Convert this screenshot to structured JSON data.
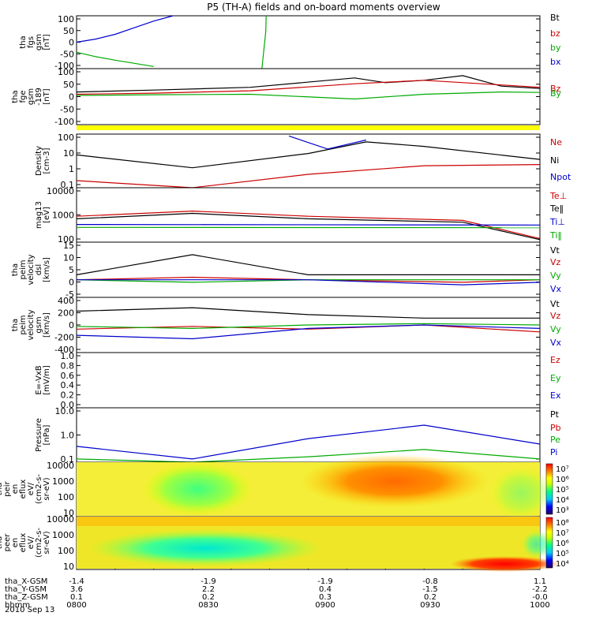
{
  "title": "P5 (TH-A) fields and on-board moments overview",
  "date_label": "2010 Sep 13",
  "orbit_rows": [
    {
      "label": "tha_X-GSM",
      "values": [
        "-1.4",
        "-1.9",
        "-1.9",
        "-0.8",
        "1.1"
      ]
    },
    {
      "label": "tha_Y-GSM",
      "values": [
        "3.6",
        "2.2",
        "0.4",
        "-1.5",
        "-2.2"
      ]
    },
    {
      "label": "tha_Z-GSM",
      "values": [
        "0.1",
        "0.2",
        "0.3",
        "0.2",
        "-0.0"
      ]
    },
    {
      "label": "hhmm",
      "values": [
        "0800",
        "0830",
        "0900",
        "0930",
        "1000"
      ]
    }
  ],
  "colors": {
    "black": "#000000",
    "red": "#cc0000",
    "green": "#00cc00",
    "blue": "#0000cc",
    "yellow": "#ffff00"
  },
  "chart_data": [
    {
      "type": "line",
      "ylabel": [
        "tha",
        "fgs",
        "gsm",
        "[nT]"
      ],
      "ylim": [
        -100,
        100
      ],
      "yticks": [
        "100",
        "50",
        "0",
        "-50",
        "-100"
      ],
      "legend": [
        {
          "name": "Bt",
          "color": "#000000"
        },
        {
          "name": "bz",
          "color": "#cc0000"
        },
        {
          "name": "by",
          "color": "#00aa00"
        },
        {
          "name": "bx",
          "color": "#0000cc"
        }
      ],
      "series": [
        {
          "name": "bx",
          "x": [
            "08:00",
            "08:05",
            "08:10",
            "08:15",
            "08:20",
            "08:25"
          ],
          "y": [
            0,
            12,
            30,
            55,
            80,
            100
          ]
        },
        {
          "name": "by",
          "x": [
            "08:00",
            "08:05",
            "08:10",
            "08:15",
            "08:20"
          ],
          "y": [
            -38,
            -55,
            -68,
            -80,
            -92
          ]
        },
        {
          "name": "bz_excursion",
          "x": [
            "08:48",
            "08:49",
            "08:49.1"
          ],
          "y": [
            -100,
            40,
            100
          ]
        }
      ]
    },
    {
      "type": "line",
      "ylabel": [
        "tha",
        "fge",
        "gsm",
        "-189",
        "[nT]"
      ],
      "ylim": [
        -120,
        120
      ],
      "yticks": [
        "100",
        "50",
        "0",
        "-50",
        "-100"
      ],
      "legend": [
        {
          "name": "Bz",
          "color": "#cc0000"
        },
        {
          "name": "By",
          "color": "#00aa00"
        }
      ],
      "series": [
        {
          "name": "Bt",
          "x": [
            "08:00",
            "08:20",
            "08:45",
            "09:12",
            "09:20",
            "09:30",
            "09:40",
            "09:50",
            "10:00"
          ],
          "y": [
            20,
            28,
            40,
            80,
            60,
            70,
            90,
            45,
            35
          ]
        },
        {
          "name": "bz",
          "x": [
            "08:00",
            "08:20",
            "08:45",
            "09:12",
            "09:30",
            "09:50",
            "10:00"
          ],
          "y": [
            10,
            15,
            25,
            55,
            70,
            50,
            40
          ]
        },
        {
          "name": "by",
          "x": [
            "08:00",
            "08:20",
            "08:45",
            "09:12",
            "09:30",
            "09:50",
            "10:00"
          ],
          "y": [
            5,
            8,
            10,
            -10,
            10,
            20,
            18
          ]
        }
      ]
    },
    {
      "type": "line",
      "ylabel": [
        "Density",
        "[cm-3]"
      ],
      "log": true,
      "ylim": [
        0.05,
        200
      ],
      "yticks": [
        "100",
        "10",
        "1",
        "0.1"
      ],
      "legend": [
        {
          "name": "Ne",
          "color": "#cc0000"
        },
        {
          "name": "Ni",
          "color": "#000000"
        },
        {
          "name": "Npot",
          "color": "#0000cc"
        }
      ],
      "series": [
        {
          "name": "Ni",
          "x": [
            "08:00",
            "08:30",
            "09:00",
            "09:15",
            "09:30",
            "10:00"
          ],
          "y": [
            8,
            1.1,
            10,
            60,
            30,
            4
          ]
        },
        {
          "name": "Ne",
          "x": [
            "08:00",
            "08:30",
            "09:00",
            "09:30",
            "10:00"
          ],
          "y": [
            0.15,
            0.05,
            0.4,
            1.5,
            1.8
          ]
        },
        {
          "name": "Npot",
          "x": [
            "08:55",
            "09:05",
            "09:15"
          ],
          "y": [
            150,
            20,
            80
          ]
        }
      ]
    },
    {
      "type": "line",
      "ylabel": [
        "mag13",
        "[eV]"
      ],
      "log": true,
      "ylim": [
        70,
        15000
      ],
      "yticks": [
        "10000",
        "1000",
        "100"
      ],
      "legend": [
        {
          "name": "Te⊥",
          "color": "#cc0000"
        },
        {
          "name": "Te‖",
          "color": "#000000"
        },
        {
          "name": "Ti⊥",
          "color": "#0000cc"
        },
        {
          "name": "Ti‖",
          "color": "#00aa00"
        }
      ],
      "series": [
        {
          "name": "Te⊥",
          "x": [
            "08:00",
            "08:30",
            "09:00",
            "09:40",
            "10:00"
          ],
          "y": [
            900,
            1500,
            900,
            600,
            100
          ]
        },
        {
          "name": "Te‖",
          "x": [
            "08:00",
            "08:30",
            "09:00",
            "09:40",
            "10:00"
          ],
          "y": [
            700,
            1200,
            700,
            500,
            90
          ]
        },
        {
          "name": "Ti⊥",
          "x": [
            "08:00",
            "10:00"
          ],
          "y": [
            400,
            380
          ]
        },
        {
          "name": "Ti‖",
          "x": [
            "08:00",
            "10:00"
          ],
          "y": [
            300,
            290
          ]
        }
      ]
    },
    {
      "type": "line",
      "ylabel": [
        "tha",
        "peim",
        "velocity",
        "dsl",
        "[km/s]"
      ],
      "ylim": [
        -7,
        15
      ],
      "yticks": [
        "15",
        "10",
        "5",
        "0",
        "-5"
      ],
      "legend": [
        {
          "name": "Vt",
          "color": "#000000"
        },
        {
          "name": "Vz",
          "color": "#cc0000"
        },
        {
          "name": "Vy",
          "color": "#00aa00"
        },
        {
          "name": "Vx",
          "color": "#0000cc"
        }
      ],
      "series": [
        {
          "name": "Vt",
          "x": [
            "08:00",
            "08:30",
            "09:00",
            "09:40",
            "10:00"
          ],
          "y": [
            2,
            10,
            2,
            2,
            2
          ]
        },
        {
          "name": "Vz",
          "x": [
            "08:00",
            "08:30",
            "09:00",
            "09:40",
            "10:00"
          ],
          "y": [
            0,
            1,
            0,
            -1,
            0
          ]
        },
        {
          "name": "Vy",
          "x": [
            "08:00",
            "08:30",
            "09:00",
            "10:00"
          ],
          "y": [
            0,
            -1,
            0,
            0
          ]
        },
        {
          "name": "Vx",
          "x": [
            "08:00",
            "08:30",
            "09:00",
            "09:40",
            "10:00"
          ],
          "y": [
            0,
            0,
            0,
            -2,
            -1
          ]
        }
      ]
    },
    {
      "type": "line",
      "ylabel": [
        "tha",
        "peim",
        "velocity",
        "gsm",
        "[km/s]"
      ],
      "ylim": [
        -400,
        400
      ],
      "yticks": [
        "400",
        "200",
        "0",
        "-200",
        "-400"
      ],
      "legend": [
        {
          "name": "Vt",
          "color": "#000000"
        },
        {
          "name": "Vz",
          "color": "#cc0000"
        },
        {
          "name": "Vy",
          "color": "#00aa00"
        },
        {
          "name": "Vx",
          "color": "#0000cc"
        }
      ],
      "series": [
        {
          "name": "Vt",
          "x": [
            "08:00",
            "08:30",
            "09:00",
            "09:30",
            "10:00"
          ],
          "y": [
            200,
            250,
            150,
            100,
            100
          ]
        },
        {
          "name": "Vz",
          "x": [
            "08:00",
            "08:30",
            "09:00",
            "09:30",
            "10:00"
          ],
          "y": [
            -60,
            -20,
            -60,
            0,
            -100
          ]
        },
        {
          "name": "Vy",
          "x": [
            "08:00",
            "08:30",
            "09:00",
            "09:30",
            "10:00"
          ],
          "y": [
            -20,
            -50,
            0,
            20,
            0
          ]
        },
        {
          "name": "Vx",
          "x": [
            "08:00",
            "08:30",
            "09:00",
            "09:30",
            "10:00"
          ],
          "y": [
            -150,
            -200,
            -50,
            0,
            -50
          ]
        }
      ]
    },
    {
      "type": "line",
      "ylabel": [
        "E=-VxB",
        "[mV/m]"
      ],
      "ylim": [
        0,
        1
      ],
      "yticks": [
        "1.0",
        "0.8",
        "0.6",
        "0.4",
        "0.2",
        "0.0"
      ],
      "legend": [
        {
          "name": "Ez",
          "color": "#cc0000"
        },
        {
          "name": "Ey",
          "color": "#00aa00"
        },
        {
          "name": "Ex",
          "color": "#0000cc"
        }
      ],
      "series": []
    },
    {
      "type": "line",
      "ylabel": [
        "Pressure",
        "[nPa]"
      ],
      "log": true,
      "ylim": [
        0.02,
        20
      ],
      "yticks": [
        "10.0",
        "1.0",
        "0.1"
      ],
      "legend": [
        {
          "name": "Pt",
          "color": "#000000"
        },
        {
          "name": "Pb",
          "color": "#cc0000"
        },
        {
          "name": "Pe",
          "color": "#00aa00"
        },
        {
          "name": "Pi",
          "color": "#0000cc"
        }
      ],
      "series": [
        {
          "name": "Pi",
          "x": [
            "08:00",
            "08:30",
            "09:00",
            "09:30",
            "10:00"
          ],
          "y": [
            0.15,
            0.03,
            0.4,
            2.2,
            0.2
          ]
        },
        {
          "name": "Pe",
          "x": [
            "08:00",
            "08:30",
            "09:00",
            "09:30",
            "10:00"
          ],
          "y": [
            0.03,
            0.02,
            0.04,
            0.1,
            0.03
          ]
        }
      ]
    },
    {
      "type": "heatmap",
      "ylabel": [
        "tha",
        "peir",
        "en",
        "eflux",
        "eV/",
        "(cm2-s-",
        "sr-eV)"
      ],
      "yticks": [
        "10000",
        "1000",
        "100",
        "10"
      ],
      "colorbar_ticks": [
        "10⁷",
        "10⁶",
        "10⁵",
        "10⁴",
        "10³"
      ]
    },
    {
      "type": "heatmap",
      "ylabel": [
        "tha",
        "peer",
        "en",
        "eflux",
        "eV/",
        "(cm2-s-",
        "sr-eV)"
      ],
      "yticks": [
        "10000",
        "1000",
        "100",
        "10"
      ],
      "colorbar_ticks": [
        "10⁸",
        "10⁷",
        "10⁶",
        "10⁵",
        "10⁴"
      ]
    }
  ]
}
